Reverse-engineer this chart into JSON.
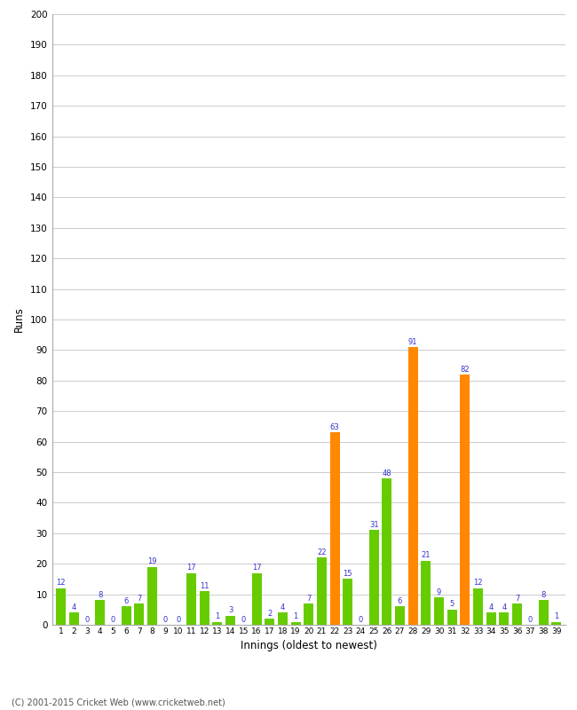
{
  "innings": [
    1,
    2,
    3,
    4,
    5,
    6,
    7,
    8,
    9,
    10,
    11,
    12,
    13,
    14,
    15,
    16,
    17,
    18,
    19,
    20,
    21,
    22,
    23,
    24,
    25,
    26,
    27,
    28,
    29,
    30,
    31,
    32,
    33,
    34,
    35,
    36,
    37,
    38,
    39
  ],
  "values": [
    12,
    4,
    0,
    8,
    0,
    6,
    7,
    19,
    0,
    0,
    17,
    11,
    1,
    3,
    0,
    17,
    2,
    4,
    1,
    7,
    22,
    63,
    15,
    0,
    31,
    48,
    6,
    91,
    21,
    9,
    5,
    82,
    12,
    4,
    4,
    7,
    0,
    8,
    1
  ],
  "colors": [
    "#66cc00",
    "#66cc00",
    "#66cc00",
    "#66cc00",
    "#66cc00",
    "#66cc00",
    "#66cc00",
    "#66cc00",
    "#66cc00",
    "#66cc00",
    "#66cc00",
    "#66cc00",
    "#66cc00",
    "#66cc00",
    "#66cc00",
    "#66cc00",
    "#66cc00",
    "#66cc00",
    "#66cc00",
    "#66cc00",
    "#66cc00",
    "#ff8800",
    "#66cc00",
    "#66cc00",
    "#66cc00",
    "#66cc00",
    "#66cc00",
    "#ff8800",
    "#66cc00",
    "#66cc00",
    "#66cc00",
    "#ff8800",
    "#66cc00",
    "#66cc00",
    "#66cc00",
    "#66cc00",
    "#66cc00",
    "#66cc00",
    "#66cc00"
  ],
  "xlabel": "Innings (oldest to newest)",
  "ylabel": "Runs",
  "ylim": [
    0,
    200
  ],
  "yticks": [
    0,
    10,
    20,
    30,
    40,
    50,
    60,
    70,
    80,
    90,
    100,
    110,
    120,
    130,
    140,
    150,
    160,
    170,
    180,
    190,
    200
  ],
  "label_color": "#3333cc",
  "bar_color_green": "#66cc00",
  "bar_color_orange": "#ff8800",
  "background_color": "#ffffff",
  "footer": "(C) 2001-2015 Cricket Web (www.cricketweb.net)"
}
